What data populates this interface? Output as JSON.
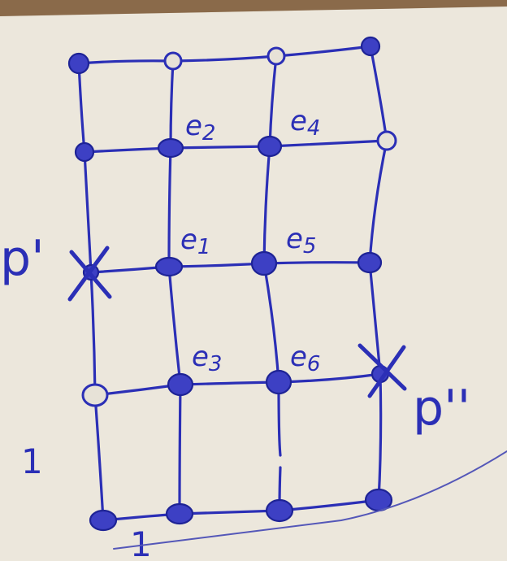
{
  "diagram": {
    "labels": {
      "p_prime": "p'",
      "p_double_prime": "p''",
      "scale_vertical": "1",
      "scale_horizontal": "1"
    },
    "edges": [
      {
        "name": "e",
        "index": "2"
      },
      {
        "name": "e",
        "index": "4"
      },
      {
        "name": "e",
        "index": "1"
      },
      {
        "name": "e",
        "index": "5"
      },
      {
        "name": "e",
        "index": "3"
      },
      {
        "name": "e",
        "index": "6"
      }
    ],
    "colors": {
      "ink": "#2b2fb6",
      "paper": "#ece7dc"
    }
  }
}
